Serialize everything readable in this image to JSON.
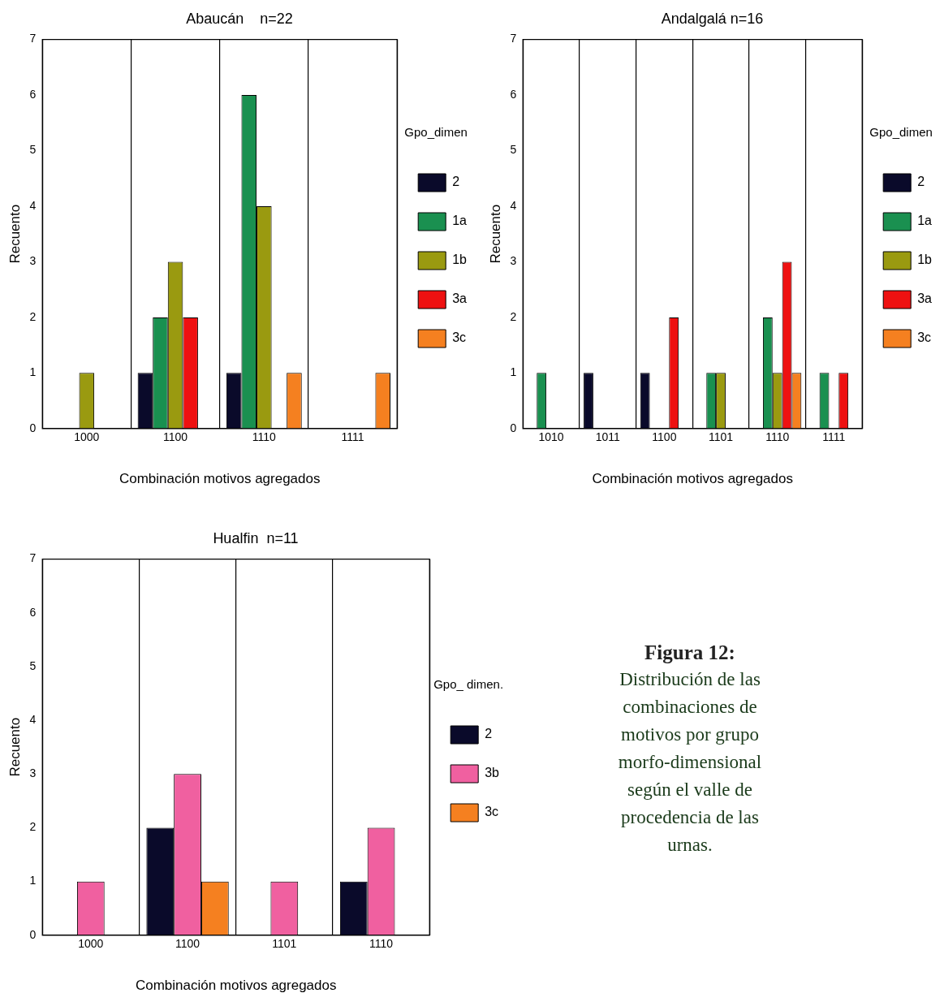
{
  "chart_data": [
    {
      "type": "bar",
      "title": "Abaucán    n=22",
      "xlabel": "Combinación motivos agregados",
      "ylabel": "Recuento",
      "legend_title": "Gpo_dimen",
      "legend": "right",
      "grid": "x",
      "categories": [
        "1000",
        "1100",
        "1110",
        "1111"
      ],
      "ylim": [
        0,
        7
      ],
      "yticks": [
        0,
        1,
        2,
        3,
        4,
        5,
        6,
        7
      ],
      "series": [
        {
          "name": "2",
          "color": "#0a0a2a",
          "values": [
            null,
            1,
            1,
            null
          ]
        },
        {
          "name": "1a",
          "color": "#1a9050",
          "values": [
            null,
            2,
            6,
            null
          ]
        },
        {
          "name": "1b",
          "color": "#9a9a10",
          "values": [
            1,
            3,
            4,
            null
          ]
        },
        {
          "name": "3a",
          "color": "#ee1111",
          "values": [
            null,
            2,
            null,
            null
          ]
        },
        {
          "name": "3c",
          "color": "#f58020",
          "values": [
            null,
            null,
            1,
            1
          ]
        }
      ]
    },
    {
      "type": "bar",
      "title": "Andalgalá n=16",
      "xlabel": "Combinación motivos agregados",
      "ylabel": "Recuento",
      "legend_title": "Gpo_dimen",
      "legend": "right",
      "grid": "x",
      "categories": [
        "1010",
        "1011",
        "1100",
        "1101",
        "1110",
        "1111"
      ],
      "ylim": [
        0,
        7
      ],
      "yticks": [
        0,
        1,
        2,
        3,
        4,
        5,
        6,
        7
      ],
      "series": [
        {
          "name": "2",
          "color": "#0a0a2a",
          "values": [
            null,
            1,
            1,
            null,
            null,
            null
          ]
        },
        {
          "name": "1a",
          "color": "#1a9050",
          "values": [
            1,
            null,
            null,
            1,
            2,
            1
          ]
        },
        {
          "name": "1b",
          "color": "#9a9a10",
          "values": [
            null,
            null,
            null,
            1,
            1,
            null
          ]
        },
        {
          "name": "3a",
          "color": "#ee1111",
          "values": [
            null,
            null,
            2,
            null,
            3,
            1
          ]
        },
        {
          "name": "3c",
          "color": "#f58020",
          "values": [
            null,
            null,
            null,
            null,
            1,
            null
          ]
        }
      ]
    },
    {
      "type": "bar",
      "title": "Hualfin  n=11",
      "xlabel": "Combinación motivos agregados",
      "ylabel": "Recuento",
      "legend_title": "Gpo_ dimen.",
      "legend": "right",
      "grid": "x",
      "categories": [
        "1000",
        "1100",
        "1101",
        "1110"
      ],
      "ylim": [
        0,
        7
      ],
      "yticks": [
        0,
        1,
        2,
        3,
        4,
        5,
        6,
        7
      ],
      "series": [
        {
          "name": "2",
          "color": "#0a0a2a",
          "values": [
            null,
            2,
            null,
            1
          ]
        },
        {
          "name": "3b",
          "color": "#f060a0",
          "values": [
            1,
            3,
            1,
            2
          ]
        },
        {
          "name": "3c",
          "color": "#f58020",
          "values": [
            null,
            1,
            null,
            null
          ]
        }
      ]
    },
    {
      "type": "other",
      "title": "Figura 12:",
      "annotations": [
        "Distribución de las combinaciones de motivos por grupo morfo-dimensional según el valle de procedencia de las urnas."
      ]
    }
  ]
}
